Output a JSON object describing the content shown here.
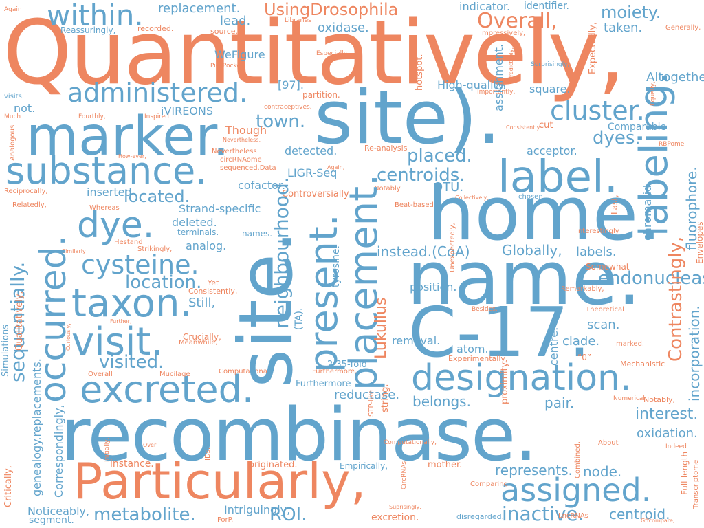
{
  "palette": {
    "blue": "#62a4cc",
    "orange": "#ee8660"
  },
  "words": [
    "Quantitatively,",
    "site).",
    "recombinase.",
    "home.",
    "name.",
    "C-17.",
    "site.",
    "marker.",
    "Particularly,",
    "substance.",
    "designation.",
    "label.",
    "labeling.",
    "administered.",
    "occurred.",
    "dye.",
    "taxon.",
    "visit.",
    "excreted.",
    "cluster.",
    "placement.",
    "present.",
    "cysteine.",
    "within.",
    "assigned.",
    "metabolite.",
    "sequentially.",
    "Overall,",
    "UsingDrosophila",
    "moiety.",
    "replacement.",
    "indicator.",
    "identifier.",
    "oxidase.",
    "lead.",
    "taken.",
    "located.",
    "location.",
    "centroids.",
    "placed.",
    "dyes.",
    "town.",
    "neighbourhood.",
    "Contrastingly,",
    "fluorophore.",
    "instead.(CoA)",
    "Globally,",
    "endonuclease.",
    "visited.",
    "ROI.",
    "inactive.",
    "centroid.",
    "node.",
    "represents.",
    "oxidation.",
    "interest.",
    "belongs.",
    "pair.",
    "reductase.",
    "recorded.",
    "source.",
    "Reassuringly,",
    "Libraries",
    "incorporation.",
    "Impressively,",
    "Generally,",
    "Lukullus",
    "Again",
    "WeFigure",
    "PickPocket",
    "[97].",
    "High-quality",
    "partition.",
    "square.",
    "Altogether",
    "visits.",
    "not.",
    "iVIREONS",
    "contraceptives.",
    "assignment.",
    "Comparable",
    "cut",
    "detected.",
    "Re-analysis",
    "acceptor.",
    "LIGR-Seq",
    "cofactor.",
    "OTU.",
    "chromatid.",
    "chosen.",
    "inserted",
    "Strand-specific",
    "deleted.",
    "terminals.",
    "analog.",
    "names.",
    "labels.",
    "Still,",
    "(TA).",
    "tyrosine.",
    "removal.",
    "position.",
    "atom.",
    "centre.",
    "scan.",
    "clade.",
    "marked.",
    "“0”",
    "2.35-fold",
    "Furthermore",
    "string.",
    "proximity.",
    "Simulations",
    "Qualitatively,",
    "genealogy.replacements.",
    "Correspondingly,",
    "instance.",
    "originated.",
    "mother.",
    "Empirically,",
    "Critically,",
    "Noticeably,",
    "segment.",
    "Intriguingly,",
    "excretion.",
    "disregarded.",
    "IDs.",
    "STP-like",
    "hotspot.",
    "Expectedly,",
    "Equally,",
    "Surprisingly,",
    "Especially,",
    "Predictably,",
    "Importantly,",
    "Much",
    "Fourthly,",
    "Inspired",
    "Nevertheless,",
    "How-ever,",
    "Nevertheless",
    "circRNAome",
    "sequenced.Data",
    "Again,",
    "RBPome",
    "Notably",
    "Collectively,",
    "Last,",
    "Envelopes",
    "Consistently",
    "Reciprocally,",
    "Controversially,",
    "Beat-based",
    "Relatedly,",
    "Whereas",
    "Hestand",
    "Strikingly,",
    "Similarly",
    "Interestingly",
    "Yet",
    "Consistently,",
    "Somewhat",
    "Remarkably,",
    "Besides,",
    "Theoretical",
    "Further,",
    "Curiously,",
    "Meanwhile,",
    "Crucially,",
    "Experimentally,",
    "Mechanistic",
    "Overall",
    "Mucilage",
    "Computational",
    "Furthermore,",
    "Numerical",
    "Notably,",
    "Combined,",
    "About",
    "Indeed",
    "Transcriptome",
    "Initially,",
    "Over",
    "Computationally,",
    "CircRNAs",
    "Full-length",
    "ForP.",
    "Suprisingly,",
    "Comparing",
    "LncRNAs",
    "Gffcompare,",
    "Unexpectedly,",
    "Though",
    "Analogous",
    "Counter-intuitively,",
    "Yet,",
    "Altogether",
    "place."
  ]
}
